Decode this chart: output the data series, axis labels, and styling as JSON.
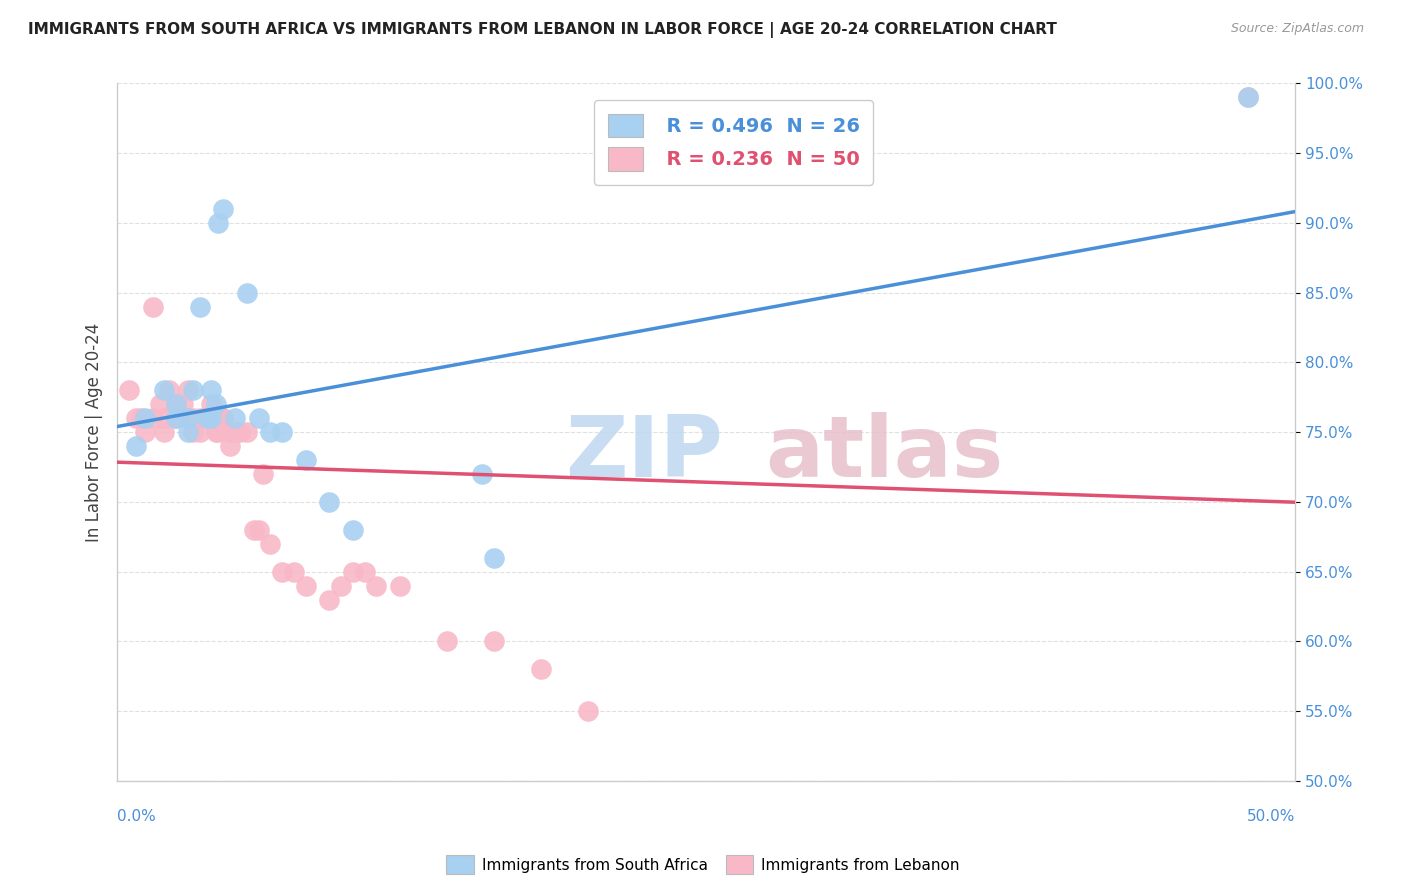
{
  "title": "IMMIGRANTS FROM SOUTH AFRICA VS IMMIGRANTS FROM LEBANON IN LABOR FORCE | AGE 20-24 CORRELATION CHART",
  "source": "Source: ZipAtlas.com",
  "ylabel": "In Labor Force | Age 20-24",
  "ytick_labels": [
    "50.0%",
    "55.0%",
    "60.0%",
    "65.0%",
    "70.0%",
    "75.0%",
    "80.0%",
    "85.0%",
    "90.0%",
    "95.0%",
    "100.0%"
  ],
  "ytick_values": [
    0.5,
    0.55,
    0.6,
    0.65,
    0.7,
    0.75,
    0.8,
    0.85,
    0.9,
    0.95,
    1.0
  ],
  "xmin": 0.0,
  "xmax": 0.5,
  "ymin": 0.5,
  "ymax": 1.0,
  "legend_blue_r": "R = 0.496",
  "legend_blue_n": "N = 26",
  "legend_pink_r": "R = 0.236",
  "legend_pink_n": "N = 50",
  "blue_color": "#a8d0f0",
  "pink_color": "#f8b8c8",
  "blue_line_color": "#4a90d9",
  "pink_line_color": "#e05070",
  "legend_box_blue": "#a8d0f0",
  "legend_box_pink": "#f8b8c8",
  "title_color": "#222222",
  "source_color": "#999999",
  "axis_color": "#cccccc",
  "grid_color": "#e0e0e0",
  "watermark_zip_color": "#c8dcf0",
  "watermark_atlas_color": "#d8b0b8",
  "blue_scatter_x": [
    0.008,
    0.012,
    0.02,
    0.025,
    0.025,
    0.03,
    0.03,
    0.032,
    0.035,
    0.038,
    0.04,
    0.04,
    0.042,
    0.043,
    0.045,
    0.05,
    0.055,
    0.06,
    0.065,
    0.07,
    0.08,
    0.09,
    0.1,
    0.155,
    0.16,
    0.48
  ],
  "blue_scatter_y": [
    0.74,
    0.76,
    0.78,
    0.76,
    0.77,
    0.75,
    0.76,
    0.78,
    0.84,
    0.76,
    0.76,
    0.78,
    0.77,
    0.9,
    0.91,
    0.76,
    0.85,
    0.76,
    0.75,
    0.75,
    0.73,
    0.7,
    0.68,
    0.72,
    0.66,
    0.99
  ],
  "pink_scatter_x": [
    0.005,
    0.008,
    0.01,
    0.012,
    0.015,
    0.015,
    0.018,
    0.02,
    0.02,
    0.022,
    0.025,
    0.025,
    0.028,
    0.03,
    0.03,
    0.032,
    0.032,
    0.035,
    0.035,
    0.038,
    0.038,
    0.04,
    0.04,
    0.042,
    0.043,
    0.045,
    0.045,
    0.048,
    0.048,
    0.05,
    0.052,
    0.055,
    0.058,
    0.06,
    0.062,
    0.065,
    0.07,
    0.075,
    0.08,
    0.09,
    0.095,
    0.1,
    0.105,
    0.11,
    0.12,
    0.14,
    0.16,
    0.18,
    0.2,
    0.48
  ],
  "pink_scatter_y": [
    0.78,
    0.76,
    0.76,
    0.75,
    0.76,
    0.84,
    0.77,
    0.76,
    0.75,
    0.78,
    0.77,
    0.76,
    0.77,
    0.76,
    0.78,
    0.76,
    0.75,
    0.76,
    0.75,
    0.76,
    0.76,
    0.77,
    0.76,
    0.75,
    0.75,
    0.76,
    0.76,
    0.75,
    0.74,
    0.75,
    0.75,
    0.75,
    0.68,
    0.68,
    0.72,
    0.67,
    0.65,
    0.65,
    0.64,
    0.63,
    0.64,
    0.65,
    0.65,
    0.64,
    0.64,
    0.6,
    0.6,
    0.58,
    0.55,
    0.99
  ],
  "legend_label_blue": "Immigrants from South Africa",
  "legend_label_pink": "Immigrants from Lebanon"
}
